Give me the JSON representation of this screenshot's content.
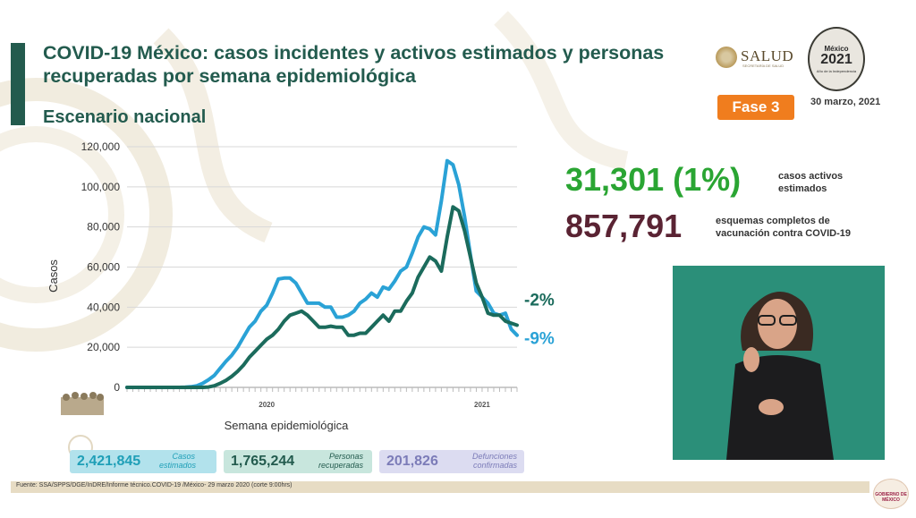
{
  "header": {
    "title": "COVID-19 México: casos incidentes y activos estimados y personas recuperadas por semana epidemiológica",
    "subtitle": "Escenario nacional",
    "phase_badge": "Fase 3",
    "date": "30 marzo, 2021",
    "salud_logo_text": "SALUD",
    "salud_logo_subtext": "SECRETARÍA DE SALUD",
    "seal_line1": "México",
    "seal_year": "2021",
    "seal_line2": "Año de la Independencia"
  },
  "highlights": {
    "active_value": "31,301 (1%)",
    "active_label": "casos activos estimados",
    "active_color": "#2aa533",
    "vaccination_value": "857,791",
    "vaccination_label": "esquemas completos de vacunación contra COVID-19",
    "vaccination_color": "#5a2333"
  },
  "stats": [
    {
      "value": "2,421,845",
      "label": "Casos estimados",
      "bg": "#b2e2ec",
      "color": "#1f9fb7"
    },
    {
      "value": "1,765,244",
      "label": "Personas recuperadas",
      "bg": "#c8e6dd",
      "color": "#235b4e"
    },
    {
      "value": "201,826",
      "label": "Defunciones confirmadas",
      "bg": "#dcdcf1",
      "color": "#7c7cb8"
    }
  ],
  "footer": {
    "source": "Fuente: SSA/SPPS/DGE/InDRE/Informe técnico.COVID-19 /México- 29 marzo 2020 (corte 9:00hrs)",
    "gob_logo_text": "GOBIERNO DE MÉXICO"
  },
  "chart_data": {
    "type": "line",
    "xlabel": "Semana epidemiológica",
    "ylabel": "Casos",
    "ylim": [
      0,
      120000
    ],
    "yticks": [
      0,
      20000,
      40000,
      60000,
      80000,
      100000,
      120000
    ],
    "ytick_labels": [
      "0",
      "20,000",
      "40,000",
      "60,000",
      "80,000",
      "100,000",
      "120,000"
    ],
    "year_labels": [
      {
        "label": "2020",
        "at_week": 25
      },
      {
        "label": "2021",
        "at_week": 62
      }
    ],
    "x": [
      1,
      2,
      3,
      4,
      5,
      6,
      7,
      8,
      9,
      10,
      11,
      12,
      13,
      14,
      15,
      16,
      17,
      18,
      19,
      20,
      21,
      22,
      23,
      24,
      25,
      26,
      27,
      28,
      29,
      30,
      31,
      32,
      33,
      34,
      35,
      36,
      37,
      38,
      39,
      40,
      41,
      42,
      43,
      44,
      45,
      46,
      47,
      48,
      49,
      50,
      51,
      52,
      53,
      54,
      55,
      56,
      57,
      58,
      59,
      60,
      61,
      62,
      63,
      64,
      65,
      66,
      67,
      68
    ],
    "series": [
      {
        "color": "#2aa2d6",
        "end_label": "-9%",
        "values": [
          0,
          0,
          0,
          0,
          0,
          0,
          0,
          0,
          0,
          0,
          100,
          300,
          800,
          2000,
          3800,
          6000,
          9500,
          13000,
          16000,
          20000,
          25000,
          30000,
          33000,
          38000,
          41000,
          47000,
          54000,
          54500,
          54500,
          52000,
          47000,
          42000,
          42000,
          42000,
          40000,
          40000,
          35000,
          35000,
          36000,
          38000,
          42000,
          44000,
          47000,
          45000,
          50000,
          49000,
          53000,
          58000,
          60000,
          67000,
          75000,
          80000,
          79000,
          76000,
          93000,
          113000,
          111000,
          101000,
          85000,
          66000,
          48000,
          45000,
          42000,
          37000,
          36000,
          37000,
          29000,
          26000
        ]
      },
      {
        "color": "#1b6b5c",
        "end_label": "-2%",
        "values": [
          0,
          0,
          0,
          0,
          0,
          0,
          0,
          0,
          0,
          0,
          0,
          0,
          0,
          0,
          200,
          800,
          2000,
          3500,
          5500,
          8000,
          11000,
          15000,
          18000,
          21000,
          24000,
          26000,
          29000,
          33000,
          36000,
          37000,
          38000,
          36000,
          33000,
          30000,
          30000,
          30500,
          30000,
          30000,
          26000,
          26000,
          27000,
          27000,
          30000,
          33000,
          36000,
          33000,
          38000,
          38000,
          43000,
          47000,
          55000,
          60000,
          65000,
          63000,
          58000,
          75000,
          90000,
          88000,
          78000,
          65000,
          52000,
          45000,
          37000,
          36000,
          36000,
          33000,
          32000,
          31000
        ]
      }
    ]
  }
}
